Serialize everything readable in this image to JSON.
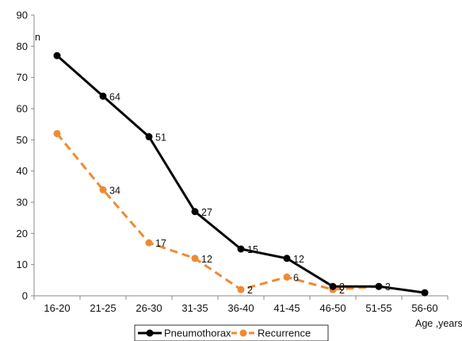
{
  "chart_data": {
    "type": "line",
    "categories": [
      "16-20",
      "21-25",
      "26-30",
      "31-35",
      "36-40",
      "41-45",
      "46-50",
      "51-55",
      "56-60"
    ],
    "series": [
      {
        "name": "Pneumothorax",
        "values": [
          77,
          64,
          51,
          27,
          15,
          12,
          3,
          3,
          1
        ],
        "labels": [
          "",
          "64",
          "51",
          "27",
          "15",
          "12",
          "3",
          "3",
          ""
        ],
        "color": "#000000",
        "dashed": false
      },
      {
        "name": "Recurrence",
        "values": [
          52,
          34,
          17,
          12,
          2,
          6,
          2,
          3,
          null
        ],
        "labels": [
          "",
          "34",
          "17",
          "12",
          "2",
          "6",
          "2",
          "",
          ""
        ],
        "color": "#f08a32",
        "dashed": true
      }
    ],
    "ylim": [
      0,
      90
    ],
    "yticks": [
      0,
      10,
      20,
      30,
      40,
      50,
      60,
      70,
      80,
      90
    ],
    "ylabel": "n",
    "xlabel": "Age ,years",
    "legend": "bottom"
  }
}
